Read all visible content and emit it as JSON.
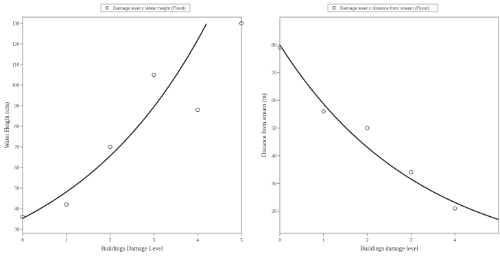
{
  "chart_data": [
    {
      "type": "scatter",
      "legend": {
        "label": "Damage level x Water height (Flood)",
        "placement": "top-center"
      },
      "xlabel": "Buildings Damage Level",
      "ylabel": "Water Height (cm)",
      "xlim": [
        0,
        5
      ],
      "ylim": [
        28,
        133
      ],
      "xticks": [
        0,
        1,
        2,
        3,
        4,
        5
      ],
      "yticks": [
        30,
        40,
        50,
        60,
        70,
        80,
        90,
        100,
        110,
        120,
        130
      ],
      "points": [
        [
          0,
          36
        ],
        [
          1,
          42
        ],
        [
          2,
          70
        ],
        [
          3,
          105
        ],
        [
          4,
          88
        ],
        [
          5,
          130
        ]
      ],
      "fit": {
        "kind": "exponential",
        "a": 35.3,
        "b": 0.31,
        "x_end": 4.2
      },
      "grid": false
    },
    {
      "type": "scatter",
      "legend": {
        "label": "Damage level x distance from stream (Flood)",
        "placement": "top-center"
      },
      "xlabel": "Buildings damage level",
      "ylabel": "Distance from stream (m)",
      "xlim": [
        0,
        5
      ],
      "ylim": [
        12,
        90
      ],
      "xticks": [
        0,
        1,
        2,
        3,
        4
      ],
      "yticks": [
        20,
        30,
        40,
        50,
        60,
        70,
        80
      ],
      "points": [
        [
          0,
          79
        ],
        [
          1,
          56
        ],
        [
          2,
          50
        ],
        [
          3,
          34
        ],
        [
          4,
          21
        ]
      ],
      "fit": {
        "kind": "exponential",
        "a": 80,
        "b": -0.31,
        "x_end": 5
      },
      "grid": false
    }
  ]
}
